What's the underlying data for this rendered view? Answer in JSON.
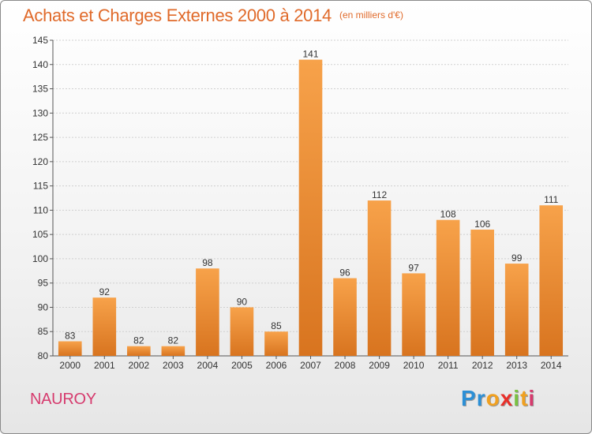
{
  "title": {
    "main": "Achats et Charges Externes 2000 à 2014",
    "unit": "(en milliers d'€)"
  },
  "commune": "NAUROY",
  "logo": {
    "text": "Proxiti",
    "letters": [
      "P",
      "r",
      "o",
      "x",
      "i",
      "t",
      "i"
    ],
    "colors": [
      "#2b8fd6",
      "#2b8fd6",
      "#f0a020",
      "#e8302a",
      "#7ac143",
      "#f0a020",
      "#d63b6e"
    ]
  },
  "colors": {
    "title": "#e06a2a",
    "bar_light": "#f7a24a",
    "bar_dark": "#d8741f",
    "commune": "#d63b6e",
    "grid": "#d0d0d0"
  },
  "chart_data": {
    "type": "bar",
    "title": "Achats et Charges Externes 2000 à 2014",
    "subtitle": "(en milliers d'€)",
    "xlabel": "",
    "ylabel": "",
    "categories": [
      "2000",
      "2001",
      "2002",
      "2003",
      "2004",
      "2005",
      "2006",
      "2007",
      "2008",
      "2009",
      "2010",
      "2011",
      "2012",
      "2013",
      "2014"
    ],
    "values": [
      83,
      92,
      82,
      82,
      98,
      90,
      85,
      141,
      96,
      112,
      97,
      108,
      106,
      99,
      111
    ],
    "ylim": [
      80,
      145
    ],
    "yticks": [
      80,
      85,
      90,
      95,
      100,
      105,
      110,
      115,
      120,
      125,
      130,
      135,
      140,
      145
    ],
    "grid": true,
    "data_labels": true
  }
}
